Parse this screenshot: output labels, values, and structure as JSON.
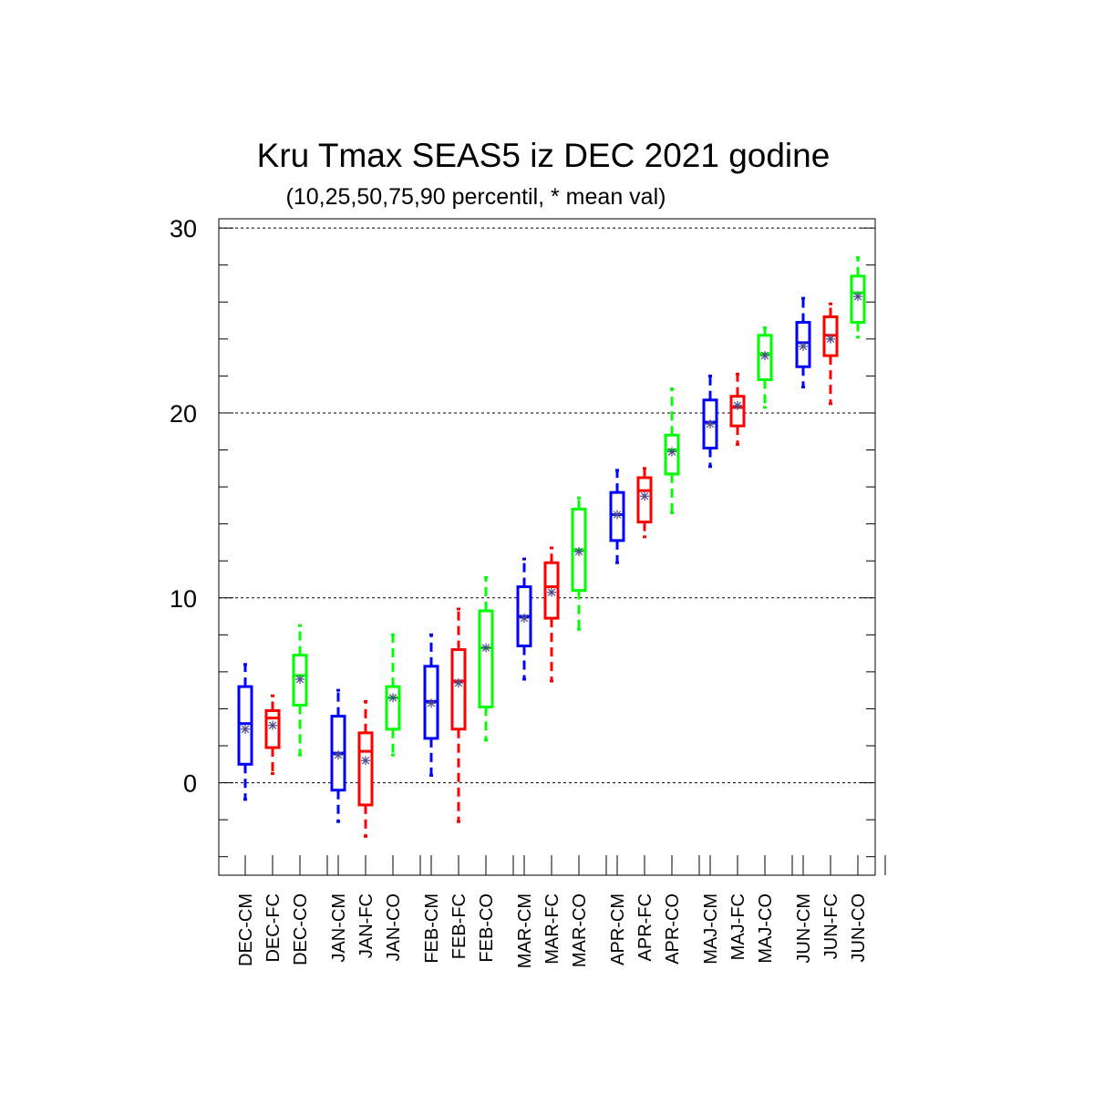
{
  "chart_data": {
    "type": "boxplot",
    "title": "Kru Tmax SEAS5 iz DEC 2021 godine",
    "subtitle": "(10,25,50,75,90 percentil, * mean val)",
    "ylim": [
      -5,
      30.5
    ],
    "yticks": [
      0,
      10,
      20,
      30
    ],
    "ytick_labels": [
      "0",
      "10",
      "20",
      "30"
    ],
    "grid": "horizontal-dashed",
    "colors": {
      "CM": "#0000ff",
      "FC": "#ff0000",
      "CO": "#00ff00"
    },
    "boxes": [
      {
        "label": "DEC-CM",
        "p10": -0.9,
        "p25": 1.0,
        "p50": 3.2,
        "p75": 5.2,
        "p90": 6.4,
        "mean": 2.9
      },
      {
        "label": "DEC-FC",
        "p10": 0.5,
        "p25": 1.9,
        "p50": 3.5,
        "p75": 3.9,
        "p90": 4.7,
        "mean": 3.1
      },
      {
        "label": "DEC-CO",
        "p10": 1.5,
        "p25": 4.2,
        "p50": 5.8,
        "p75": 6.9,
        "p90": 8.5,
        "mean": 5.6
      },
      {
        "label": "JAN-CM",
        "p10": -2.1,
        "p25": -0.4,
        "p50": 1.6,
        "p75": 3.6,
        "p90": 5.0,
        "mean": 1.5
      },
      {
        "label": "JAN-FC",
        "p10": -2.9,
        "p25": -1.2,
        "p50": 1.7,
        "p75": 2.7,
        "p90": 4.4,
        "mean": 1.2
      },
      {
        "label": "JAN-CO",
        "p10": 1.5,
        "p25": 2.9,
        "p50": 4.6,
        "p75": 5.2,
        "p90": 8.0,
        "mean": 4.6
      },
      {
        "label": "FEB-CM",
        "p10": 0.4,
        "p25": 2.4,
        "p50": 4.4,
        "p75": 6.3,
        "p90": 8.0,
        "mean": 4.3
      },
      {
        "label": "FEB-FC",
        "p10": -2.1,
        "p25": 2.9,
        "p50": 5.5,
        "p75": 7.2,
        "p90": 9.4,
        "mean": 5.4
      },
      {
        "label": "FEB-CO",
        "p10": 2.3,
        "p25": 4.1,
        "p50": 7.3,
        "p75": 9.3,
        "p90": 11.1,
        "mean": 7.3
      },
      {
        "label": "MAR-CM",
        "p10": 5.6,
        "p25": 7.4,
        "p50": 9.0,
        "p75": 10.6,
        "p90": 12.1,
        "mean": 8.9
      },
      {
        "label": "MAR-FC",
        "p10": 5.5,
        "p25": 8.9,
        "p50": 10.6,
        "p75": 11.9,
        "p90": 12.7,
        "mean": 10.3
      },
      {
        "label": "MAR-CO",
        "p10": 8.3,
        "p25": 10.4,
        "p50": 12.6,
        "p75": 14.8,
        "p90": 15.4,
        "mean": 12.5
      },
      {
        "label": "APR-CM",
        "p10": 11.9,
        "p25": 13.1,
        "p50": 14.5,
        "p75": 15.7,
        "p90": 16.9,
        "mean": 14.5
      },
      {
        "label": "APR-FC",
        "p10": 13.3,
        "p25": 14.1,
        "p50": 15.8,
        "p75": 16.5,
        "p90": 17.0,
        "mean": 15.5
      },
      {
        "label": "APR-CO",
        "p10": 14.6,
        "p25": 16.7,
        "p50": 18.0,
        "p75": 18.8,
        "p90": 21.3,
        "mean": 17.9
      },
      {
        "label": "MAJ-CM",
        "p10": 17.1,
        "p25": 18.1,
        "p50": 19.5,
        "p75": 20.7,
        "p90": 22.0,
        "mean": 19.4
      },
      {
        "label": "MAJ-FC",
        "p10": 18.3,
        "p25": 19.3,
        "p50": 20.3,
        "p75": 20.9,
        "p90": 22.1,
        "mean": 20.4
      },
      {
        "label": "MAJ-CO",
        "p10": 20.3,
        "p25": 21.8,
        "p50": 23.2,
        "p75": 24.2,
        "p90": 24.6,
        "mean": 23.1
      },
      {
        "label": "JUN-CM",
        "p10": 21.4,
        "p25": 22.5,
        "p50": 23.8,
        "p75": 24.9,
        "p90": 26.2,
        "mean": 23.6
      },
      {
        "label": "JUN-FC",
        "p10": 20.5,
        "p25": 23.1,
        "p50": 24.2,
        "p75": 25.2,
        "p90": 25.9,
        "mean": 24.0
      },
      {
        "label": "JUN-CO",
        "p10": 24.1,
        "p25": 24.9,
        "p50": 26.5,
        "p75": 27.4,
        "p90": 28.4,
        "mean": 26.3
      }
    ]
  }
}
